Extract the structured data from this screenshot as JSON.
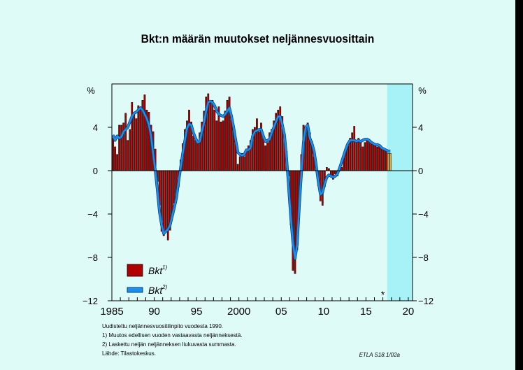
{
  "chart_data": {
    "type": "bar",
    "title": "Bkt:n määrän muutokset neljännesvuosittain",
    "ylabel_left": "%",
    "ylabel_right": "%",
    "ylim": [
      -12,
      8
    ],
    "yticks": [
      -12,
      -8,
      -4,
      0,
      4
    ],
    "xlim": [
      1985,
      2020.5
    ],
    "xticks": [
      {
        "value": 1985,
        "label": "1985"
      },
      {
        "value": 1990,
        "label": "90"
      },
      {
        "value": 1995,
        "label": "95"
      },
      {
        "value": 2000,
        "label": "2000"
      },
      {
        "value": 2005,
        "label": "05"
      },
      {
        "value": 2010,
        "label": "10"
      },
      {
        "value": 2015,
        "label": "15"
      },
      {
        "value": 2020,
        "label": "20"
      }
    ],
    "forecast_start": 2017.5,
    "forecast_marker": "*",
    "legend": [
      {
        "label": "Bkt",
        "sup": "1)",
        "color": "#b00000",
        "kind": "bar"
      },
      {
        "label": "Bkt",
        "sup": "2)",
        "color": "#1a8ff0",
        "kind": "line"
      }
    ],
    "start_year": 1985,
    "quarterly_growth": [
      3.0,
      2.2,
      1.5,
      4.2,
      4.2,
      4.4,
      5.3,
      2.8,
      3.8,
      6.3,
      5.2,
      4.8,
      6.0,
      5.6,
      6.5,
      7.0,
      5.6,
      5.4,
      4.2,
      3.6,
      2.0,
      -1.0,
      -3.2,
      -5.6,
      -6.0,
      -5.5,
      -6.4,
      -5.5,
      -4.0,
      -3.0,
      -2.3,
      -1.5,
      1.0,
      2.5,
      3.8,
      4.6,
      5.6,
      4.5,
      3.2,
      2.8,
      2.6,
      3.5,
      4.5,
      5.5,
      6.8,
      7.1,
      6.3,
      6.5,
      5.6,
      4.6,
      5.9,
      4.5,
      4.6,
      5.5,
      6.5,
      6.8,
      4.7,
      3.8,
      2.5,
      0.6,
      1.3,
      1.6,
      1.3,
      2.0,
      2.3,
      2.8,
      3.8,
      4.0,
      4.8,
      3.6,
      4.4,
      3.0,
      2.3,
      2.6,
      3.5,
      3.8,
      4.6,
      5.3,
      5.6,
      5.9,
      5.0,
      2.8,
      1.8,
      -0.5,
      -5.0,
      -9.2,
      -9.5,
      -7.3,
      -2.8,
      1.5,
      4.2,
      4.0,
      4.4,
      3.5,
      2.7,
      1.3,
      0.0,
      -1.4,
      -2.8,
      -3.2,
      -1.5,
      0.3,
      0.2,
      -0.5,
      -0.8,
      -0.3,
      -0.5,
      0.0,
      0.3,
      1.2,
      2.0,
      2.3,
      3.0,
      3.5,
      4.1,
      2.6,
      3.0,
      2.6,
      2.2,
      2.6,
      2.9,
      2.8,
      2.6,
      2.4,
      2.3,
      2.2,
      2.2,
      2.0,
      1.9,
      1.8,
      1.6,
      1.6
    ],
    "moving_average": [
      3.3,
      2.8,
      3.2,
      3.0,
      3.1,
      3.6,
      3.8,
      4.0,
      4.5,
      5.0,
      5.3,
      5.4,
      5.6,
      5.8,
      5.6,
      5.2,
      4.8,
      4.2,
      3.2,
      1.6,
      0.0,
      -1.8,
      -3.8,
      -5.0,
      -5.8,
      -5.6,
      -5.4,
      -5.0,
      -4.2,
      -3.4,
      -2.5,
      -1.0,
      0.3,
      1.6,
      2.8,
      3.9,
      4.3,
      4.2,
      3.5,
      3.0,
      2.6,
      2.7,
      3.6,
      4.4,
      5.5,
      6.3,
      6.4,
      6.3,
      6.0,
      5.5,
      5.2,
      5.1,
      5.0,
      5.2,
      5.5,
      5.8,
      5.0,
      4.0,
      2.8,
      1.7,
      1.5,
      1.4,
      1.5,
      1.9,
      1.9,
      2.1,
      3.2,
      3.6,
      3.7,
      3.8,
      3.8,
      3.2,
      2.7,
      2.8,
      2.9,
      3.5,
      4.0,
      4.5,
      5.0,
      5.0,
      4.2,
      3.3,
      1.2,
      -1.6,
      -4.3,
      -6.6,
      -8.1,
      -6.8,
      -3.3,
      -0.3,
      2.6,
      4.0,
      4.2,
      3.0,
      2.5,
      1.8,
      0.5,
      -1.0,
      -2.2,
      -2.0,
      -1.2,
      -0.6,
      -0.4,
      -0.5,
      -0.6,
      -0.5,
      -0.3,
      0.2,
      0.8,
      1.4,
      2.0,
      2.5,
      2.8,
      2.8,
      2.8,
      2.7,
      2.8,
      2.7,
      2.8,
      2.9,
      2.9,
      2.8,
      2.6,
      2.5,
      2.4,
      2.4,
      2.3,
      2.1,
      2.0,
      1.9,
      1.8,
      1.8
    ]
  },
  "labels": {
    "title": "Bkt:n määrän muutokset neljännesvuosittain",
    "note_main": "Uudistettu neljännesvuositilinpito vuodesta 1990.",
    "note_1": "1)    Muutos edellisen vuoden vastaavasta neljänneksestä.",
    "note_2": "2)    Laskettu neljän neljänneksen liukuvasta summasta.",
    "source": "Lähde:   Tilastokeskus.",
    "code": "ETLA S18.1/02a"
  },
  "colors": {
    "background": "#dffbf8",
    "forecast_band": "#a6f2f7",
    "bar": "#b00000",
    "bar_forecast": "#f2a323",
    "line": "#1a8ff0",
    "line_dark": "#0a3f7a"
  }
}
